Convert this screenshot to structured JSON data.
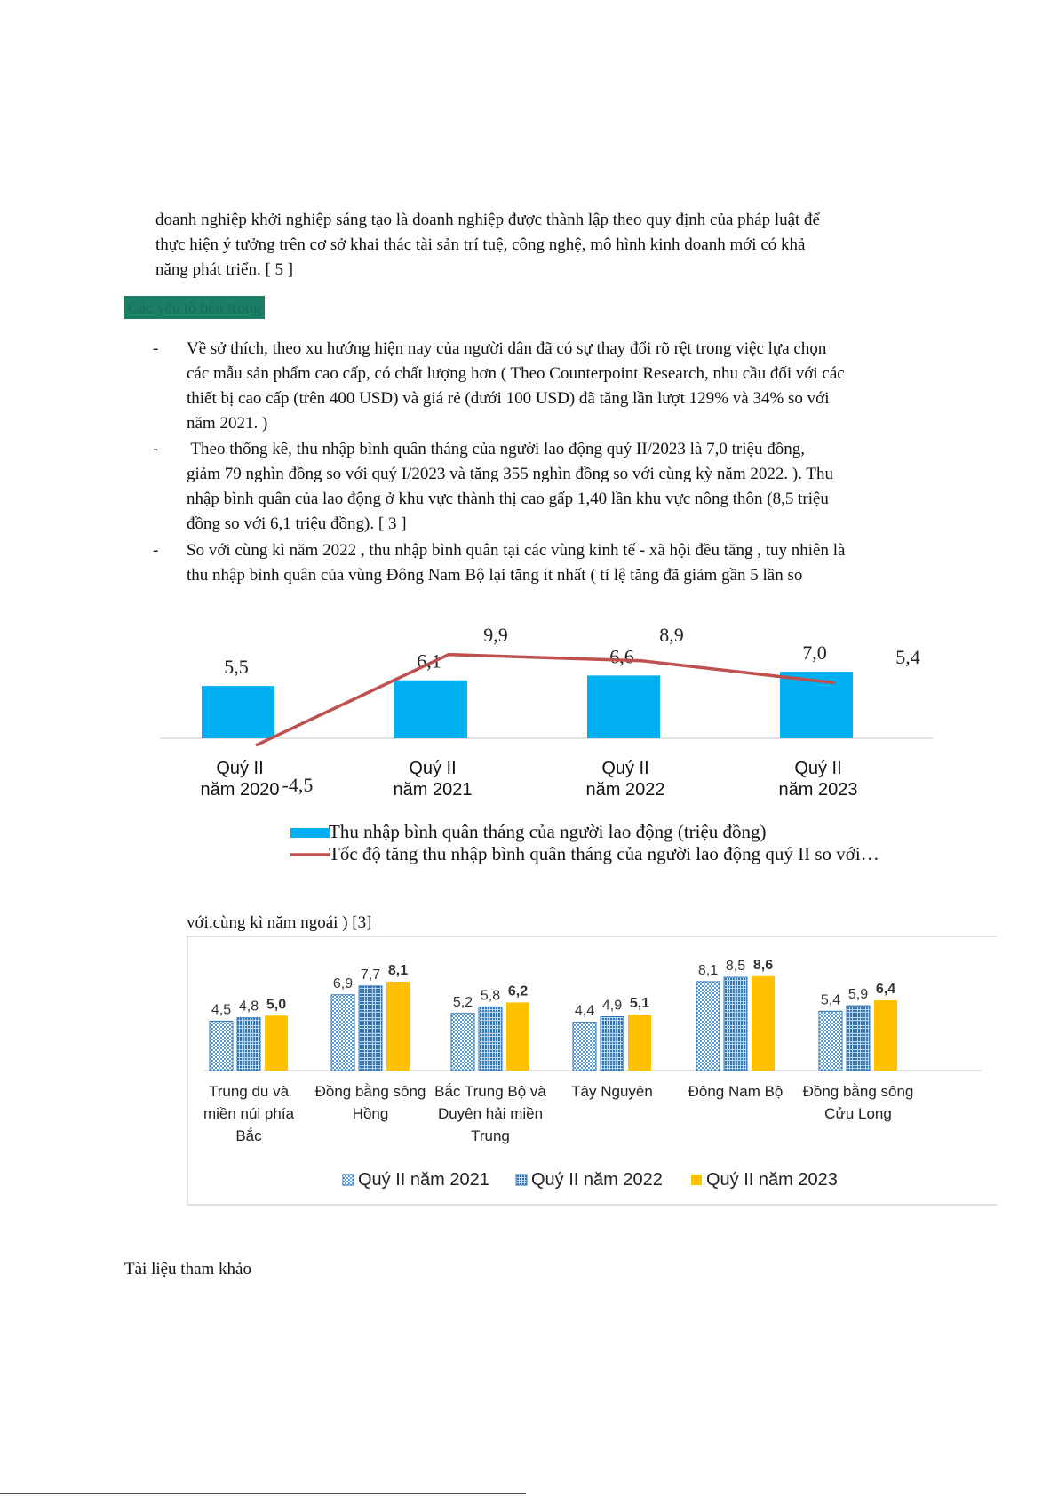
{
  "intro": {
    "lines": [
      "doanh nghiệp khởi nghiệp sáng tạo là doanh nghiệp được thành lập theo quy định của pháp luật để",
      "thực hiện ý tưởng trên cơ sở khai thác tài sản trí tuệ, công nghệ, mô hình kinh doanh mới có khả",
      "năng phát triển. [ 5 ]"
    ]
  },
  "heading": "Các yếu tố bên trong",
  "bullets": [
    {
      "marker": "-",
      "lines": [
        "Về sở thích, theo xu hướng hiện nay của người dân đã có sự thay đổi rõ rệt trong việc lựa chọn",
        "các mẫu sản phẩm cao cấp, có chất lượng hơn ( Theo Counterpoint Research, nhu cầu đối với các",
        "thiết bị cao cấp (trên 400 USD) và giá rẻ (dưới 100 USD) đã tăng lần lượt 129% và 34% so với",
        "năm 2021. )"
      ]
    },
    {
      "marker": "-",
      "lines": [
        " Theo thống kê, thu nhập bình quân tháng của người lao động quý II/2023 là 7,0 triệu đồng,",
        "giảm 79 nghìn đồng so với quý I/2023 và tăng 355 nghìn đồng so với cùng kỳ năm 2022. ). Thu",
        "nhập bình quân của lao động ở khu vực thành thị cao gấp 1,40 lần khu vực nông thôn (8,5 triệu",
        "đồng so với 6,1 triệu đồng). [ 3 ]"
      ]
    },
    {
      "marker": "-",
      "lines": [
        "So với cùng kì năm 2022 , thu nhập bình quân tại các vùng kinh tế - xã hội đều tăng , tuy nhiên là",
        "thu nhập bình quân của vùng Đông Nam Bộ lại tăng ít nhất ( tỉ lệ tăng đã giảm gần 5 lần so"
      ]
    }
  ],
  "continuation": "với.cùng kì năm ngoái ) [3]",
  "references_title": "Tài liệu tham khảo",
  "colors": {
    "bar_blue": "#00b0f0",
    "line_red": "#c0504d",
    "bar_yellow": "#ffc000",
    "pattern_blue": "#2e75b6"
  },
  "chart_data": [
    {
      "type": "bar",
      "categories": [
        [
          "Quý II",
          "năm 2020"
        ],
        [
          "Quý II",
          "năm 2021"
        ],
        [
          "Quý II",
          "năm 2022"
        ],
        [
          "Quý II",
          "năm 2023"
        ]
      ],
      "series": [
        {
          "name": "Thu nhập bình quân tháng của người lao động (triệu đồng)",
          "kind": "bar",
          "values": [
            5.5,
            6.1,
            6.6,
            7.0
          ],
          "labels": [
            "5,5",
            "6,1",
            "6,6",
            "7,0"
          ]
        },
        {
          "name": "Tốc độ tăng thu nhập bình quân tháng của người lao động quý II so với…",
          "kind": "line",
          "values": [
            -4.5,
            9.9,
            8.9,
            5.4
          ],
          "labels": [
            "-4,5",
            "9,9",
            "8,9",
            "5,4"
          ]
        }
      ],
      "legend": "bottom"
    },
    {
      "type": "bar",
      "categories": [
        [
          "Trung du và",
          "miền núi phía",
          "Bắc"
        ],
        [
          "Đồng bằng sông",
          "Hồng"
        ],
        [
          "Bắc Trung Bộ và",
          "Duyên hải miền",
          "Trung"
        ],
        [
          "Tây Nguyên"
        ],
        [
          "Đông Nam Bộ"
        ],
        [
          "Đồng bằng sông",
          "Cửu Long"
        ]
      ],
      "series": [
        {
          "name": "Quý II năm 2021",
          "values": [
            4.5,
            6.9,
            5.2,
            4.4,
            8.1,
            5.4
          ],
          "labels": [
            "4,5",
            "6,9",
            "5,2",
            "4,4",
            "8,1",
            "5,4"
          ]
        },
        {
          "name": "Quý II năm 2022",
          "values": [
            4.8,
            7.7,
            5.8,
            4.9,
            8.5,
            5.9
          ],
          "labels": [
            "4,8",
            "7,7",
            "5,8",
            "4,9",
            "8,5",
            "5,9"
          ]
        },
        {
          "name": "Quý II năm 2023",
          "values": [
            5.0,
            8.1,
            6.2,
            5.1,
            8.6,
            6.4
          ],
          "labels": [
            "5,0",
            "8,1",
            "6,2",
            "5,1",
            "8,6",
            "6,4"
          ]
        }
      ],
      "legend": "bottom"
    }
  ]
}
